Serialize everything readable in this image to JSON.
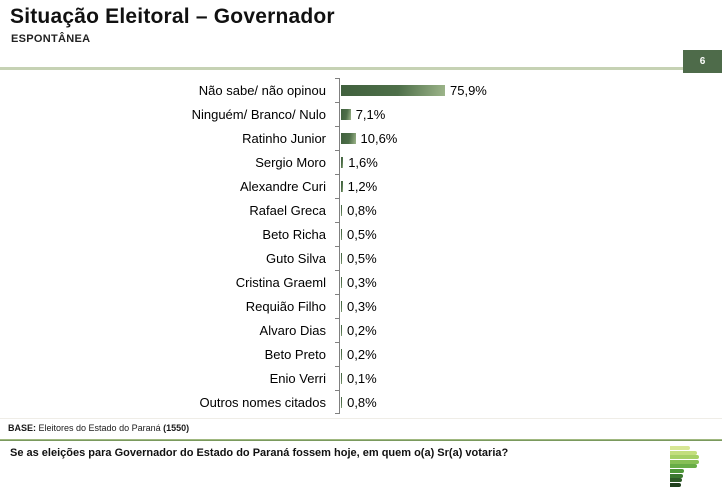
{
  "header": {
    "title": "Situação Eleitoral – Governador",
    "subtitle": "ESPONTÂNEA",
    "page_number": "6"
  },
  "chart_data": {
    "type": "bar",
    "orientation": "horizontal",
    "title": "Situação Eleitoral – Governador (Espontânea)",
    "categories": [
      "Não sabe/ não opinou",
      "Ninguém/ Branco/ Nulo",
      "Ratinho Junior",
      "Sergio Moro",
      "Alexandre Curi",
      "Rafael Greca",
      "Beto Richa",
      "Guto Silva",
      "Cristina Graeml",
      "Requião Filho",
      "Alvaro Dias",
      "Beto Preto",
      "Enio Verri",
      "Outros nomes citados"
    ],
    "values": [
      75.9,
      7.1,
      10.6,
      1.6,
      1.2,
      0.8,
      0.5,
      0.5,
      0.3,
      0.3,
      0.2,
      0.2,
      0.1,
      0.8
    ],
    "value_labels": [
      "75,9%",
      "7,1%",
      "10,6%",
      "1,6%",
      "1,2%",
      "0,8%",
      "0,5%",
      "0,5%",
      "0,3%",
      "0,3%",
      "0,2%",
      "0,2%",
      "0,1%",
      "0,8%"
    ],
    "xlim": [
      0,
      100
    ],
    "grid": false,
    "legend": false,
    "bar_color_dark": "#40603d",
    "bar_color_mid": "#4e6f49",
    "bar_color_light": "#9db58a",
    "axis_color": "#808080"
  },
  "footer": {
    "base_label": "BASE:",
    "base_text": " Eleitores do Estado do Paraná ",
    "base_count": "(1550)",
    "question": "Se as eleições para Governador do Estado do Paraná fossem hoje, em quem o(a) Sr(a) votaria?"
  },
  "theme": {
    "rule_light_green": "#c6d2b4",
    "badge_green": "#4e6b4a",
    "divider_top": "#b3c791",
    "divider_bottom": "#67894c"
  },
  "logo": {
    "name": "parana-pesquisas-logo",
    "stripe_colors": [
      "#d7e795",
      "#c3de7d",
      "#a6d065",
      "#86bf55",
      "#68ad46",
      "#4e9739",
      "#3b7830",
      "#2d5a27",
      "#20401e"
    ]
  }
}
